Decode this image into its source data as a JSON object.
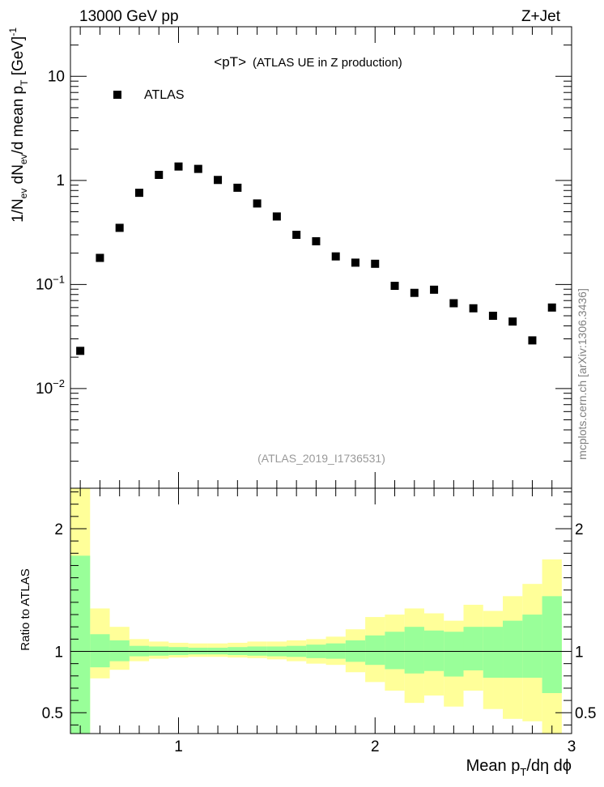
{
  "header": {
    "left": "13000 GeV pp",
    "right": "Z+Jet"
  },
  "plot_title": {
    "main": "<pT>",
    "sub": "(ATLAS UE in Z production)"
  },
  "analysis_id": "(ATLAS_2019_I1736531)",
  "side_label": "mcplots.cern.ch [arXiv:1306.3436]",
  "colors": {
    "band_outer": "#ffff99",
    "band_inner": "#99ff99",
    "marker": "#000000",
    "analysis_text": "#999999",
    "side_text": "#808080"
  },
  "chart_data": [
    {
      "type": "scatter",
      "panel": "main",
      "ylabel": "1/N_ev dN_ev/d mean p_T [GeV]^-1",
      "yscale": "log",
      "xlim": [
        0.45,
        3.0
      ],
      "ylim": [
        0.0011,
        30
      ],
      "legend": {
        "entries": [
          "ATLAS"
        ],
        "placement": "top-left"
      },
      "y_tick_labels": [
        "10^-2",
        "10^-1",
        "1",
        "10"
      ],
      "series": [
        {
          "name": "ATLAS",
          "x": [
            0.5,
            0.6,
            0.7,
            0.8,
            0.9,
            1.0,
            1.1,
            1.2,
            1.3,
            1.4,
            1.5,
            1.6,
            1.7,
            1.8,
            1.9,
            2.0,
            2.1,
            2.2,
            2.3,
            2.4,
            2.5,
            2.6,
            2.7,
            2.8,
            2.9
          ],
          "y": [
            0.023,
            0.18,
            0.35,
            0.76,
            1.13,
            1.36,
            1.29,
            1.01,
            0.85,
            0.6,
            0.45,
            0.3,
            0.26,
            0.186,
            0.162,
            0.158,
            0.097,
            0.083,
            0.089,
            0.066,
            0.059,
            0.05,
            0.044,
            0.029,
            0.06
          ]
        }
      ]
    },
    {
      "type": "area",
      "panel": "ratio",
      "ylabel": "Ratio to ATLAS",
      "xlabel": "Mean p_T/dη dφ",
      "xlim": [
        0.45,
        3.0
      ],
      "ylim": [
        0.33,
        2.33
      ],
      "x_tick_labels": [
        "1",
        "2",
        "3"
      ],
      "y_tick_labels": [
        "0.5",
        "1",
        "2"
      ],
      "reference_line": 1,
      "bin_edges": [
        0.45,
        0.55,
        0.65,
        0.75,
        0.85,
        0.95,
        1.05,
        1.15,
        1.25,
        1.35,
        1.45,
        1.55,
        1.65,
        1.75,
        1.85,
        1.95,
        2.05,
        2.15,
        2.25,
        2.35,
        2.45,
        2.55,
        2.65,
        2.75,
        2.85,
        2.95
      ],
      "series": [
        {
          "name": "outer band",
          "lower": [
            0.33,
            0.78,
            0.85,
            0.92,
            0.94,
            0.95,
            0.955,
            0.955,
            0.95,
            0.945,
            0.935,
            0.92,
            0.9,
            0.89,
            0.83,
            0.75,
            0.68,
            0.58,
            0.64,
            0.55,
            0.68,
            0.53,
            0.45,
            0.43,
            0.33,
            0.46
          ],
          "upper": [
            2.33,
            1.35,
            1.2,
            1.1,
            1.08,
            1.07,
            1.065,
            1.065,
            1.07,
            1.08,
            1.08,
            1.09,
            1.1,
            1.12,
            1.18,
            1.28,
            1.3,
            1.35,
            1.31,
            1.25,
            1.38,
            1.33,
            1.45,
            1.55,
            1.75,
            1.5
          ]
        },
        {
          "name": "inner band",
          "lower": [
            0.33,
            0.87,
            0.92,
            0.96,
            0.965,
            0.97,
            0.975,
            0.975,
            0.97,
            0.965,
            0.96,
            0.955,
            0.945,
            0.94,
            0.915,
            0.89,
            0.855,
            0.82,
            0.84,
            0.795,
            0.845,
            0.785,
            0.785,
            0.785,
            0.66,
            0.78
          ],
          "upper": [
            1.78,
            1.14,
            1.09,
            1.045,
            1.04,
            1.035,
            1.03,
            1.03,
            1.035,
            1.04,
            1.04,
            1.045,
            1.055,
            1.065,
            1.09,
            1.13,
            1.16,
            1.2,
            1.17,
            1.16,
            1.2,
            1.2,
            1.25,
            1.3,
            1.45,
            1.3
          ]
        }
      ]
    }
  ]
}
